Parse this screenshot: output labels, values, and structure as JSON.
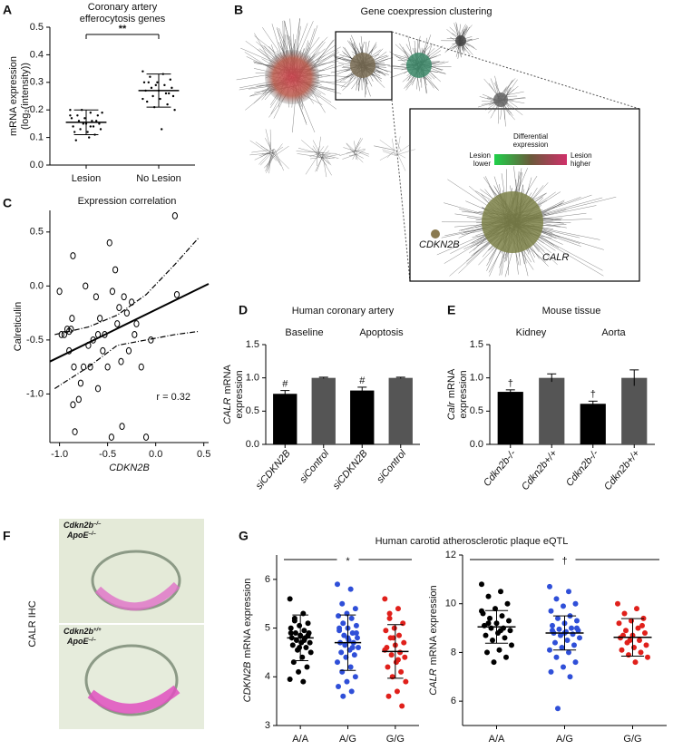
{
  "panel_labels": [
    "A",
    "B",
    "C",
    "D",
    "E",
    "F",
    "G"
  ],
  "network_panel": {
    "title": "Gene coexpression clustering",
    "legend_title": [
      "Differential",
      "expression"
    ],
    "legend_low": [
      "Lesion",
      "lower"
    ],
    "legend_high": [
      "Lesion",
      "higher"
    ],
    "node_labels": [
      "CDKN2B",
      "CALR"
    ]
  },
  "ihc_panel": {
    "label": "CALR IHC",
    "top_genotype": [
      "Cdkn2b",
      "–/–",
      "ApoE",
      "–/–"
    ],
    "bottom_genotype": [
      "Cdkn2b",
      "+/+",
      "ApoE",
      "–/–"
    ]
  },
  "chart_data": [
    {
      "type": "dot",
      "title": [
        "Coronary artery",
        "efferocytosis genes"
      ],
      "ylabel": [
        "mRNA expression",
        "(log₂(intensity))"
      ],
      "categories": [
        "Lesion",
        "No Lesion"
      ],
      "color": "#000000",
      "points": [
        [
          0.2,
          0.19,
          0.18,
          0.18,
          0.17,
          0.17,
          0.16,
          0.16,
          0.15,
          0.15,
          0.14,
          0.14,
          0.13,
          0.13,
          0.12,
          0.12,
          0.11,
          0.2,
          0.19,
          0.1,
          0.09,
          0.16,
          0.15,
          0.18,
          0.14
        ],
        [
          0.34,
          0.33,
          0.32,
          0.31,
          0.3,
          0.3,
          0.29,
          0.28,
          0.28,
          0.27,
          0.27,
          0.26,
          0.25,
          0.25,
          0.24,
          0.23,
          0.22,
          0.21,
          0.2,
          0.13,
          0.3,
          0.26,
          0.29,
          0.24
        ]
      ],
      "means": [
        0.155,
        0.27
      ],
      "sd": [
        0.045,
        0.06
      ],
      "annotation": "**",
      "ylim": [
        0,
        0.5
      ],
      "yticks": [
        {
          "value": 0,
          "label": "0.0"
        },
        0.1,
        0.2,
        0.3,
        0.4,
        0.5
      ]
    },
    {
      "type": "scatter",
      "title": "Expression correlation",
      "xlabel": "CDKN2B",
      "ylabel": "Calreticulin",
      "x": [
        -1.0,
        -0.98,
        -0.95,
        -0.92,
        -0.9,
        -0.9,
        -0.88,
        -0.87,
        -0.86,
        -0.85,
        -0.84,
        -0.8,
        -0.78,
        -0.75,
        -0.73,
        -0.7,
        -0.68,
        -0.65,
        -0.62,
        -0.6,
        -0.58,
        -0.55,
        -0.53,
        -0.5,
        -0.48,
        -0.46,
        -0.45,
        -0.42,
        -0.4,
        -0.38,
        -0.36,
        -0.35,
        -0.33,
        -0.3,
        -0.28,
        -0.25,
        -0.22,
        -0.2,
        -0.15,
        -0.1,
        -0.05,
        0.2,
        0.22,
        -0.6,
        -0.86
      ],
      "y": [
        -0.05,
        -0.45,
        -0.45,
        -0.4,
        -0.42,
        -0.6,
        -0.4,
        -0.3,
        0.28,
        -0.75,
        -1.35,
        -1.05,
        -0.9,
        -0.75,
        0.0,
        -0.55,
        -0.75,
        -0.5,
        -0.1,
        -0.45,
        -0.3,
        -0.6,
        -0.45,
        -0.75,
        0.4,
        -1.4,
        -0.05,
        0.15,
        -0.35,
        -0.2,
        -0.7,
        -1.3,
        -0.1,
        -0.25,
        -0.6,
        -0.15,
        -0.45,
        -0.35,
        -0.75,
        -1.4,
        -0.5,
        0.65,
        -0.08,
        -0.95,
        -1.1
      ],
      "fit_line": {
        "x": [
          -1.1,
          0.55
        ],
        "y": [
          -0.7,
          0.02
        ]
      },
      "band_upper": {
        "x": [
          -1.05,
          -0.7,
          -0.4,
          -0.1,
          0.2,
          0.45
        ],
        "y": [
          -0.45,
          -0.38,
          -0.27,
          -0.08,
          0.2,
          0.45
        ]
      },
      "band_lower": {
        "x": [
          -1.05,
          -0.7,
          -0.4,
          -0.1,
          0.2,
          0.45
        ],
        "y": [
          -0.95,
          -0.75,
          -0.55,
          -0.5,
          -0.45,
          -0.42
        ]
      },
      "annotation": "r = 0.32",
      "xlim": [
        -1.1,
        0.55
      ],
      "ylim": [
        -1.45,
        0.7
      ],
      "xticks": [
        {
          "value": -1,
          "label": "-1.0"
        },
        -0.5,
        {
          "value": 0,
          "label": "0.0"
        },
        0.5
      ],
      "yticks": [
        {
          "value": -1,
          "label": "-1.0"
        },
        -0.5,
        {
          "value": 0,
          "label": "0.0"
        },
        0.5
      ]
    },
    {
      "type": "bar",
      "title": "Human coronary artery",
      "ylabel_gene": "CALR",
      "ylabel": [
        "mRNA",
        "expression"
      ],
      "groups": [
        "Baseline",
        "Apoptosis"
      ],
      "categories": [
        "siCDKN2B",
        "siControl",
        "siCDKN2B",
        "siControl"
      ],
      "values": [
        0.76,
        1.0,
        0.81,
        1.0
      ],
      "errors": [
        0.05,
        0.01,
        0.05,
        0.01
      ],
      "colors": [
        "#000000",
        "#555555",
        "#000000",
        "#555555"
      ],
      "markers": [
        "#",
        null,
        "#",
        null
      ],
      "ylim": [
        0,
        1.5
      ],
      "yticks": [
        {
          "value": 0,
          "label": "0.0"
        },
        0.5,
        {
          "value": 1,
          "label": "1.0"
        },
        1.5
      ]
    },
    {
      "type": "bar",
      "title": "Mouse tissue",
      "ylabel_gene": "Calr",
      "ylabel": [
        "mRNA",
        "expression"
      ],
      "groups": [
        "Kidney",
        "Aorta"
      ],
      "categories": [
        "Cdkn2b-/-",
        "Cdkn2b+/+",
        "Cdkn2b-/-",
        "Cdkn2b+/+"
      ],
      "values": [
        0.79,
        1.0,
        0.61,
        1.0
      ],
      "errors": [
        0.03,
        0.06,
        0.04,
        0.12
      ],
      "colors": [
        "#000000",
        "#555555",
        "#000000",
        "#555555"
      ],
      "markers": [
        "†",
        null,
        "†",
        null
      ],
      "ylim": [
        0,
        1.5
      ],
      "yticks": [
        {
          "value": 0,
          "label": "0.0"
        },
        0.5,
        {
          "value": 1,
          "label": "1.0"
        },
        1.5
      ]
    },
    {
      "type": "dot",
      "title": "Human carotid atherosclerotic plaque eQTL",
      "ylabel_gene": "CDKN2B",
      "ylabel": [
        "mRNA expression"
      ],
      "categories": [
        "A/A",
        "A/G",
        "G/G"
      ],
      "colors": [
        "#000000",
        "#2f4fd8",
        "#e0201b"
      ],
      "points": [
        [
          5.6,
          5.3,
          5.2,
          5.1,
          5.05,
          5.0,
          4.95,
          4.9,
          4.9,
          4.85,
          4.8,
          4.8,
          4.75,
          4.7,
          4.7,
          4.65,
          4.6,
          4.55,
          4.5,
          4.4,
          4.3,
          4.2,
          4.1,
          3.95,
          3.9,
          5.15,
          4.85,
          4.6,
          4.9,
          4.75
        ],
        [
          5.9,
          5.8,
          5.5,
          5.4,
          5.3,
          5.25,
          5.2,
          5.1,
          5.05,
          5.0,
          4.95,
          4.9,
          4.85,
          4.8,
          4.75,
          4.7,
          4.7,
          4.65,
          4.6,
          4.55,
          4.5,
          4.45,
          4.4,
          4.3,
          4.2,
          4.1,
          4.0,
          3.9,
          3.8,
          3.7,
          3.6,
          4.9,
          4.8,
          5.0,
          4.6
        ],
        [
          5.6,
          5.4,
          5.2,
          5.1,
          5.0,
          4.95,
          4.85,
          4.8,
          4.7,
          4.65,
          4.6,
          4.5,
          4.45,
          4.4,
          4.3,
          4.2,
          4.1,
          4.0,
          3.9,
          3.7,
          3.6,
          3.4,
          4.8,
          4.55,
          4.35,
          5.3
        ]
      ],
      "means": [
        4.8,
        4.7,
        4.52
      ],
      "sd": [
        0.47,
        0.57,
        0.55
      ],
      "annotation": "*",
      "ylim": [
        3,
        6.5
      ],
      "yticks": [
        3,
        4,
        5,
        6
      ]
    },
    {
      "type": "dot",
      "ylabel_gene": "CALR",
      "ylabel": [
        "mRNA expression"
      ],
      "categories": [
        "A/A",
        "A/G",
        "G/G"
      ],
      "colors": [
        "#000000",
        "#2f4fd8",
        "#e0201b"
      ],
      "points": [
        [
          10.8,
          10.5,
          10.3,
          10.0,
          9.8,
          9.6,
          9.5,
          9.4,
          9.3,
          9.2,
          9.1,
          9.0,
          9.0,
          8.9,
          8.8,
          8.7,
          8.6,
          8.5,
          8.3,
          8.1,
          8.0,
          7.8,
          7.6,
          9.7,
          8.9,
          9.2
        ],
        [
          10.7,
          10.5,
          10.2,
          10.0,
          9.9,
          9.7,
          9.5,
          9.4,
          9.3,
          9.2,
          9.1,
          9.0,
          8.95,
          8.9,
          8.85,
          8.8,
          8.75,
          8.7,
          8.6,
          8.5,
          8.4,
          8.3,
          8.2,
          8.1,
          8.0,
          7.8,
          7.6,
          7.4,
          7.2,
          7.0,
          5.7,
          9.0,
          8.8,
          8.9
        ],
        [
          10.0,
          9.8,
          9.6,
          9.4,
          9.3,
          9.2,
          9.0,
          8.9,
          8.8,
          8.7,
          8.6,
          8.5,
          8.4,
          8.3,
          8.2,
          8.1,
          8.0,
          7.9,
          7.8,
          7.6,
          8.7,
          9.1,
          8.5
        ]
      ],
      "means": [
        9.05,
        8.8,
        8.62
      ],
      "sd": [
        0.67,
        0.7,
        0.77
      ],
      "annotation": "†",
      "ylim": [
        5,
        12
      ],
      "yticks": [
        6,
        8,
        10,
        12
      ]
    }
  ]
}
